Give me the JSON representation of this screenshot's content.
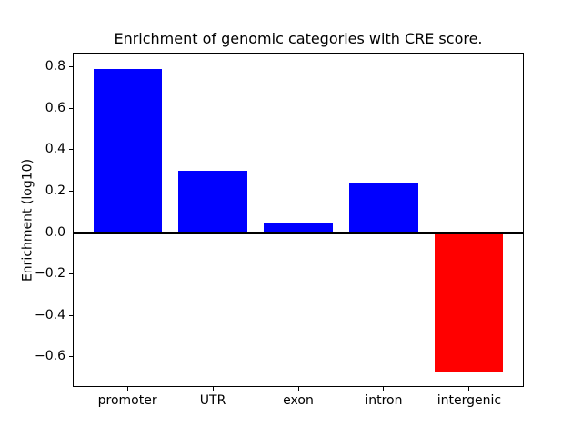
{
  "chart_data": {
    "type": "bar",
    "title": "Enrichment of genomic categories with CRE score.",
    "xlabel": "",
    "ylabel": "Enrichment (log10)",
    "categories": [
      "promoter",
      "UTR",
      "exon",
      "intron",
      "intergenic"
    ],
    "values": [
      0.79,
      0.3,
      0.05,
      0.24,
      -0.67
    ],
    "bar_colors": [
      "#0000ff",
      "#0000ff",
      "#0000ff",
      "#0000ff",
      "#ff0000"
    ],
    "positive_color": "#0000ff",
    "negative_color": "#ff0000",
    "axis_color": "#000000",
    "background_color": "#ffffff",
    "ylim": [
      -0.745,
      0.868
    ],
    "xlim": [
      -0.64,
      4.64
    ],
    "bar_width": 0.8,
    "yticks": [
      0.8,
      0.6,
      0.4,
      0.2,
      0.0,
      -0.2,
      -0.4,
      -0.6
    ],
    "ytick_labels": [
      "0.8",
      "0.6",
      "0.4",
      "0.2",
      "0.0",
      "−0.2",
      "−0.4",
      "−0.6"
    ],
    "zero_line": true,
    "grid": false,
    "legend": "none"
  }
}
